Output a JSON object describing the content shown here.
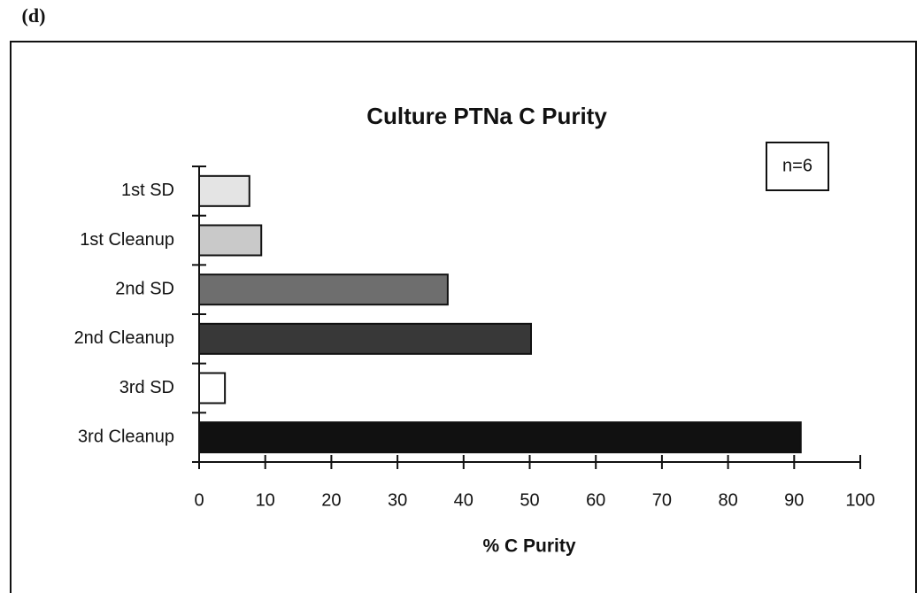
{
  "chart_data": {
    "type": "hbar",
    "panel_label": "(d)",
    "title": "Culture PTNa C Purity",
    "annotation": "n=6",
    "x_label": "% C Purity",
    "categories": [
      "1st SD",
      "1st Cleanup",
      "2nd SD",
      "2nd Cleanup",
      "3rd SD",
      "3rd Cleanup"
    ],
    "values": [
      7.6,
      9.4,
      37.6,
      50.2,
      3.9,
      91
    ],
    "colors": [
      "#e4e4e4",
      "#c9c9c9",
      "#6e6e6e",
      "#383838",
      "#ffffff",
      "#111111"
    ],
    "xlim": [
      0,
      100
    ],
    "xticks": [
      0,
      10,
      20,
      30,
      40,
      50,
      60,
      70,
      80,
      90,
      100
    ]
  }
}
